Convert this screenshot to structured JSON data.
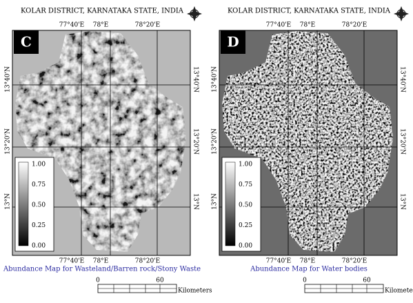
{
  "panels": [
    {
      "letter": "C",
      "title": "KOLAR DISTRICT, KARNATAKA STATE, INDIA",
      "lon_labels": [
        "77°40'E",
        "78°E",
        "78°20'E"
      ],
      "lat_labels": [
        "13°40'N",
        "13°20'N",
        "13°N"
      ],
      "legend": [
        "1.00",
        "0.75",
        "0.50",
        "0.25",
        "0.00"
      ],
      "caption": "Abundance Map for Wasteland/Barren rock/Stony Waste",
      "scale": {
        "start": "0",
        "end": "60",
        "unit": "Kilometers"
      }
    },
    {
      "letter": "D",
      "title": "KOLAR DISTRICT, KARNATAKA STATE, INDIA",
      "lon_labels": [
        "77°40'E",
        "78°E",
        "78°20'E"
      ],
      "lat_labels": [
        "13°40'N",
        "13°20'N",
        "13°N"
      ],
      "legend": [
        "1.00",
        "0.75",
        "0.50",
        "0.25",
        "0.00"
      ],
      "caption": "Abundance Map for Water bodies",
      "scale": {
        "start": "0",
        "end": "60",
        "unit": "Kilometers"
      }
    }
  ]
}
